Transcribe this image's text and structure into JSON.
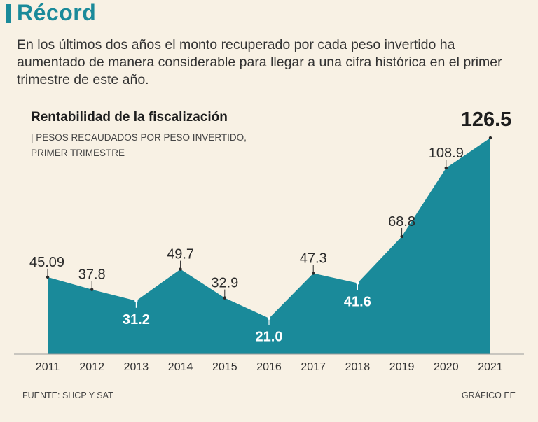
{
  "header": {
    "title": "Récord",
    "intro": "En los últimos dos años el monto recuperado por cada peso invertido ha aumentado de manera considerable para llegar a una cifra histórica en el primer trimestre de este año."
  },
  "chart_data": {
    "type": "area",
    "title": "Rentabilidad de la fiscalización",
    "subtitle": "| PESOS RECAUDADOS POR PESO INVERTIDO, PRIMER TRIMESTRE",
    "categories": [
      "2011",
      "2012",
      "2013",
      "2014",
      "2015",
      "2016",
      "2017",
      "2018",
      "2019",
      "2020",
      "2021"
    ],
    "values": [
      45.09,
      37.8,
      31.2,
      49.7,
      32.9,
      21.0,
      47.3,
      41.6,
      68.8,
      108.9,
      126.5
    ],
    "labels": [
      "45.09",
      "37.8",
      "31.2",
      "49.7",
      "32.9",
      "21.0",
      "47.3",
      "41.6",
      "68.8",
      "108.9",
      "126.5"
    ],
    "label_style": [
      "above",
      "above",
      "inside",
      "above",
      "above",
      "inside",
      "above",
      "inside",
      "above",
      "above",
      "highlight"
    ],
    "ylim": [
      0,
      126.5
    ],
    "xlabel": "",
    "ylabel": "",
    "fill_color": "#1a8a9a"
  },
  "footer": {
    "source": "FUENTE: SHCP Y SAT",
    "credit": "GRÁFICO EE"
  }
}
